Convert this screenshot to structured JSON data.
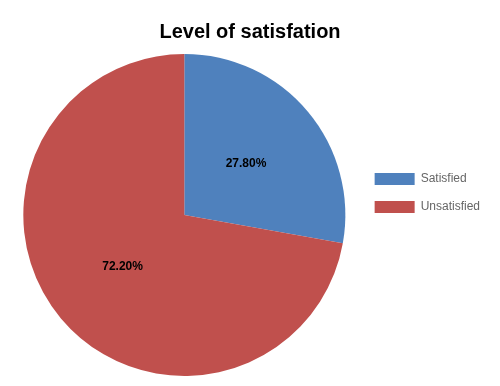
{
  "chart_data": {
    "type": "pie",
    "title": "Level of satisfation",
    "categories": [
      "Satisfied",
      "Unsatisfied"
    ],
    "values": [
      27.8,
      72.2
    ],
    "value_labels": [
      "27.80%",
      "72.20%"
    ],
    "colors": [
      "#4F81BD",
      "#C0504D"
    ],
    "data_labels": true,
    "legend": "right"
  }
}
